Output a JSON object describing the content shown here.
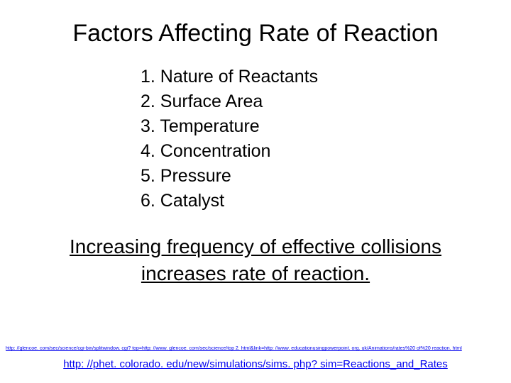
{
  "title": "Factors Affecting Rate of Reaction",
  "items": [
    "1. Nature of Reactants",
    "2. Surface Area",
    "3. Temperature",
    "4. Concentration",
    "5. Pressure",
    "6. Catalyst"
  ],
  "summary_line1": "Increasing frequency of effective collisions",
  "summary_line2": "increases rate of reaction.",
  "link1": "http: //glencoe. com/sec/science/cgi-bin/splitwindow. cgi? top=http: //www. glencoe. com/sec/science/top 2. html&link=http: //www. educationusingpowerpoint. org. uk/Animations/rates%20 of%20 reaction. html",
  "link2": "http: //phet. colorado. edu/new/simulations/sims. php? sim=Reactions_and_Rates"
}
